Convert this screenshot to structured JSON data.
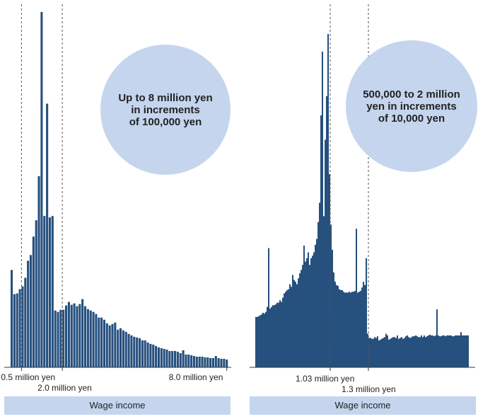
{
  "colors": {
    "bar": "#26507e",
    "circle": "#c5d5ee",
    "label_box": "#c5d5ee",
    "axis": "#333333",
    "marker_line": "#555555"
  },
  "chart_data": [
    {
      "type": "bar",
      "xlabel": "Wage income",
      "ylabel": "",
      "annotation": {
        "lines": [
          "Up to 8 million yen",
          "in increments",
          "of 100,000 yen"
        ]
      },
      "bin_width": "100,000 yen",
      "x_range": [
        0.1,
        8.0
      ],
      "x_unit": "million yen",
      "markers": [
        {
          "x": 0.5,
          "label": "0.5 million yen"
        },
        {
          "x": 2.0,
          "label": "2.0 million yen"
        }
      ],
      "end_label": {
        "x": 8.0,
        "label": "8.0 million yen"
      },
      "bins_start": 0.1,
      "bins_step": 0.1,
      "values": [
        137,
        103,
        104,
        110,
        114,
        126,
        150,
        158,
        184,
        207,
        269,
        500,
        213,
        371,
        211,
        213,
        80,
        78,
        81,
        81,
        87,
        92,
        88,
        90,
        86,
        89,
        96,
        86,
        82,
        80,
        78,
        75,
        70,
        70,
        67,
        62,
        59,
        61,
        63,
        53,
        55,
        52,
        50,
        47,
        45,
        43,
        42,
        41,
        38,
        38,
        35,
        33,
        32,
        30,
        28,
        27,
        26,
        25,
        23,
        23,
        23,
        22,
        20,
        24,
        18,
        18,
        17,
        16,
        15,
        15,
        15,
        14,
        14,
        13,
        13,
        16,
        13,
        12,
        12,
        11
      ]
    },
    {
      "type": "bar",
      "xlabel": "Wage income",
      "ylabel": "",
      "annotation": {
        "lines": [
          "500,000 to 2 million",
          "yen in increments",
          "of 10,000 yen"
        ]
      },
      "bin_width": "10,000 yen",
      "x_range": [
        0.5,
        2.0
      ],
      "x_unit": "million yen",
      "markers": [
        {
          "x": 1.03,
          "label": "1.03 million yen"
        },
        {
          "x": 1.3,
          "label": "1.3 million yen"
        }
      ],
      "bins_start": 0.5,
      "bins_step": 0.01,
      "values": [
        60,
        60,
        61,
        62,
        63,
        65,
        64,
        66,
        72,
        142,
        70,
        72,
        74,
        74,
        75,
        77,
        77,
        80,
        78,
        83,
        88,
        90,
        92,
        93,
        99,
        96,
        110,
        104,
        102,
        99,
        106,
        112,
        116,
        122,
        145,
        126,
        130,
        137,
        122,
        130,
        133,
        137,
        146,
        153,
        173,
        196,
        300,
        376,
        180,
        271,
        323,
        397,
        230,
        170,
        140,
        113,
        102,
        98,
        97,
        93,
        92,
        92,
        90,
        89,
        89,
        89,
        90,
        89,
        90,
        90,
        91,
        165,
        89,
        90,
        91,
        95,
        102,
        98,
        130,
        40,
        35,
        35,
        34,
        34,
        36,
        35,
        37,
        32,
        33,
        34,
        35,
        36,
        40,
        38,
        33,
        34,
        35,
        36,
        36,
        35,
        38,
        34,
        35,
        36,
        34,
        35,
        37,
        38,
        36,
        35,
        36,
        37,
        37,
        38,
        37,
        36,
        36,
        38,
        36,
        38,
        36,
        37,
        38,
        39,
        38,
        38,
        37,
        38,
        69,
        38,
        37,
        37,
        38,
        38,
        37,
        38,
        38,
        38,
        38,
        37,
        37,
        38,
        38,
        38,
        38,
        42,
        38,
        38,
        38,
        38,
        38
      ]
    }
  ]
}
